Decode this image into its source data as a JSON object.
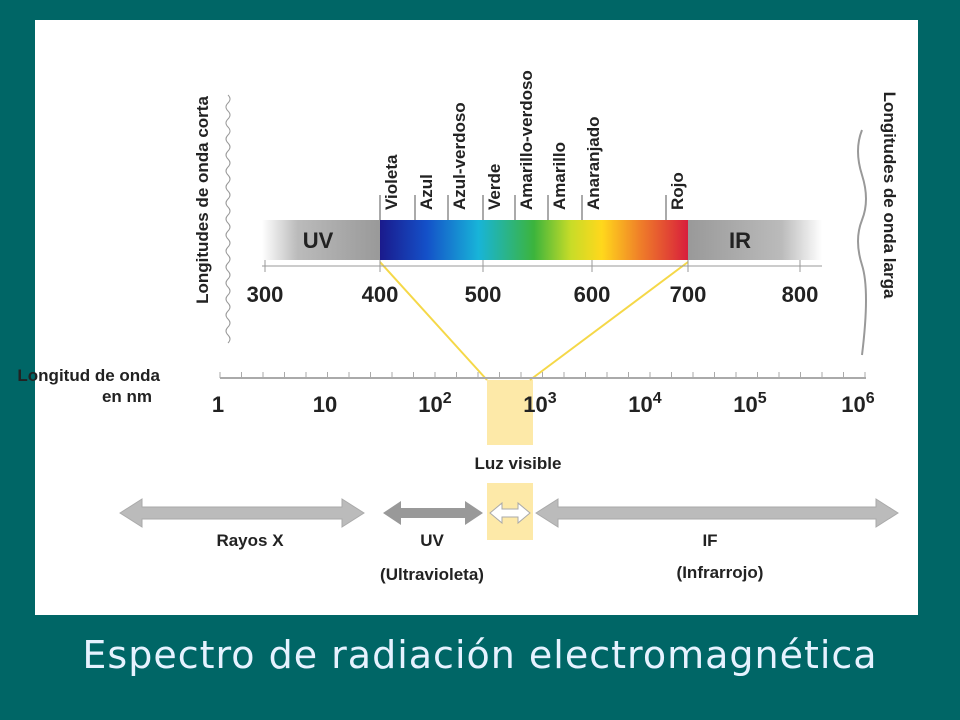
{
  "caption": "Espectro de radiación electromagnética",
  "short_waves": "Longitudes de onda corta",
  "long_waves": "Longitudes de onda larga",
  "axis_label": [
    "Longitud de onda",
    "en nm"
  ],
  "spectrum": {
    "uv": "UV",
    "ir": "IR",
    "colors": [
      "Violeta",
      "Azul",
      "Azul-verdoso",
      "Verde",
      "Amarillo-verdoso",
      "Amarillo",
      "Anaranjado",
      "Rojo"
    ],
    "ticks": [
      "300",
      "400",
      "500",
      "600",
      "700",
      "800"
    ]
  },
  "log_ticks": [
    {
      "base": "1"
    },
    {
      "base": "10"
    },
    {
      "base": "10",
      "exponent": "2"
    },
    {
      "base": "10",
      "exponent": "3"
    },
    {
      "base": "10",
      "exponent": "4"
    },
    {
      "base": "10",
      "exponent": "5"
    },
    {
      "base": "10",
      "exponent": "6"
    }
  ],
  "visible_light": "Luz visible",
  "bands": [
    {
      "label": "Rayos X"
    },
    {
      "label": "UV",
      "sublabel": "(Ultravioleta)"
    },
    {
      "label": "IF",
      "sublabel": "(Infrarrojo)"
    }
  ]
}
